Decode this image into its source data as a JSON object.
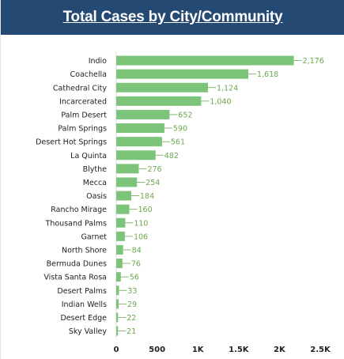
{
  "header": {
    "title": "Total Cases by City/Community"
  },
  "colors": {
    "header_bg": "#244a74",
    "bar": "#7cc47a",
    "value_text": "#6aa84f"
  },
  "chart_data": {
    "type": "bar",
    "orientation": "horizontal",
    "title": "Total Cases by City/Community",
    "categories": [
      "Indio",
      "Coachella",
      "Cathedral City",
      "Incarcerated",
      "Palm Desert",
      "Palm Springs",
      "Desert Hot Springs",
      "La Quinta",
      "Blythe",
      "Mecca",
      "Oasis",
      "Rancho Mirage",
      "Thousand Palms",
      "Garnet",
      "North Shore",
      "Bermuda Dunes",
      "Vista Santa Rosa",
      "Desert Palms",
      "Indian Wells",
      "Desert Edge",
      "Sky Valley"
    ],
    "values": [
      2176,
      1618,
      1124,
      1040,
      652,
      590,
      561,
      482,
      276,
      254,
      184,
      160,
      110,
      106,
      84,
      76,
      56,
      33,
      29,
      22,
      21
    ],
    "value_labels": [
      "2,176",
      "1,618",
      "1,124",
      "1,040",
      "652",
      "590",
      "561",
      "482",
      "276",
      "254",
      "184",
      "160",
      "110",
      "106",
      "84",
      "76",
      "56",
      "33",
      "29",
      "22",
      "21"
    ],
    "xlim": [
      0,
      2500
    ],
    "x_ticks": [
      0,
      500,
      1000,
      1500,
      2000,
      2500
    ],
    "x_tick_labels": [
      "0",
      "500",
      "1K",
      "1.5K",
      "2K",
      "2.5K"
    ],
    "grid": false,
    "legend": "none"
  }
}
